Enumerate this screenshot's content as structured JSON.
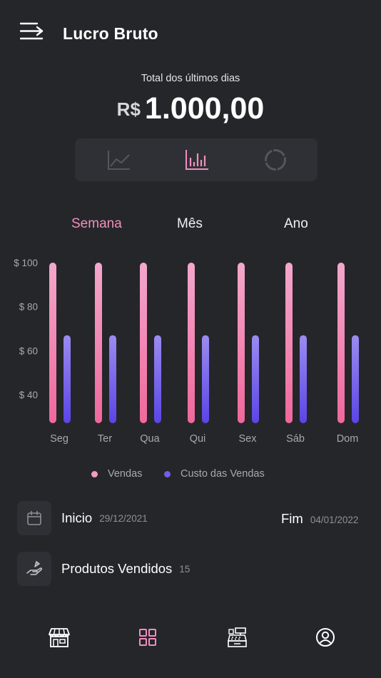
{
  "header": {
    "title": "Lucro Bruto"
  },
  "summary": {
    "label": "Total dos últimos dias",
    "currency": "R$",
    "amount": "1.000,00"
  },
  "chart_switch": {
    "options": [
      {
        "icon": "line-chart-icon",
        "active": false
      },
      {
        "icon": "bar-chart-icon",
        "active": true
      },
      {
        "icon": "donut-chart-icon",
        "active": false
      }
    ]
  },
  "periods": {
    "week": "Semana",
    "month": "Mês",
    "year": "Ano",
    "active": "week"
  },
  "colors": {
    "accent": "#f08fbf",
    "vendas_top": "#f3a8cc",
    "vendas_bottom": "#f0679d",
    "custo_top": "#9b8bf0",
    "custo_bottom": "#5a45e6",
    "legend_vendas": "#f59ac7",
    "legend_custo": "#6f5fe8"
  },
  "chart_data": {
    "type": "bar",
    "categories": [
      "Seg",
      "Ter",
      "Qua",
      "Qui",
      "Sex",
      "Sáb",
      "Dom"
    ],
    "series": [
      {
        "name": "Vendas",
        "values": [
          100,
          100,
          100,
          100,
          100,
          100,
          100
        ]
      },
      {
        "name": "Custo das Vendas",
        "values": [
          67,
          67,
          67,
          67,
          67,
          67,
          67
        ]
      }
    ],
    "y_ticks": [
      100,
      80,
      60,
      40
    ],
    "y_tick_labels": [
      "$ 100",
      "$ 80",
      "$ 60",
      "$ 40"
    ],
    "ylim": [
      27,
      100
    ],
    "grid": false,
    "legend_position": "bottom"
  },
  "legend": {
    "vendas": "Vendas",
    "custo": "Custo das Vendas"
  },
  "period_info": {
    "start_label": "Inicio",
    "start_date": "29/12/2021",
    "end_label": "Fim",
    "end_date": "04/01/2022"
  },
  "products": {
    "label": "Produtos Vendidos",
    "count": "15"
  },
  "nav": {
    "items": [
      {
        "icon": "store-icon"
      },
      {
        "icon": "dashboard-icon",
        "active": true
      },
      {
        "icon": "cash-register-icon"
      },
      {
        "icon": "profile-icon"
      }
    ]
  }
}
